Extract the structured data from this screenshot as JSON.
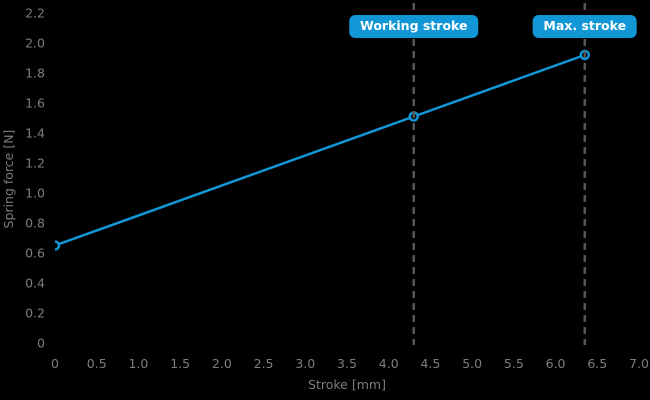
{
  "chart_data": {
    "type": "line",
    "title": "",
    "xlabel": "Stroke [mm]",
    "ylabel": "Spring force [N]",
    "xlim": [
      0,
      7.0
    ],
    "ylim": [
      0,
      2.2
    ],
    "x_ticks": [
      0,
      0.5,
      1.0,
      1.5,
      2.0,
      2.5,
      3.0,
      3.5,
      4.0,
      4.5,
      5.0,
      5.5,
      6.0,
      6.5,
      7.0
    ],
    "x_tick_labels": [
      "0",
      "0.5",
      "1.0",
      "1.5",
      "2.0",
      "2.5",
      "3.0",
      "3.5",
      "4.0",
      "4.5",
      "5.0",
      "5.5",
      "6.0",
      "6.5",
      "7.0"
    ],
    "y_ticks": [
      0,
      0.2,
      0.4,
      0.6,
      0.8,
      1.0,
      1.2,
      1.4,
      1.6,
      1.8,
      2.0,
      2.2
    ],
    "y_tick_labels": [
      "0",
      "0.2",
      "0.4",
      "0.6",
      "0.8",
      "1.0",
      "1.2",
      "1.4",
      "1.6",
      "1.8",
      "2.0",
      "2.2"
    ],
    "grid": false,
    "legend": false,
    "series": [
      {
        "name": "spring-characteristic-line",
        "x": [
          0,
          4.3,
          6.35
        ],
        "y": [
          0.65,
          1.51,
          1.92
        ],
        "marker": "open-circle"
      }
    ],
    "annotations": [
      {
        "label": "Working stroke",
        "x": 4.3,
        "style": "dashed-vertical-line"
      },
      {
        "label": "Max. stroke",
        "x": 6.35,
        "style": "dashed-vertical-line"
      }
    ]
  },
  "colors": {
    "background": "#000000",
    "series_blue": "#1196d6",
    "tick_text": "#7d7d7d",
    "dashed_guide": "#565656",
    "marker_fill": "#000000",
    "annotation_bg": "#1196d6",
    "annotation_text": "#ffffff"
  }
}
